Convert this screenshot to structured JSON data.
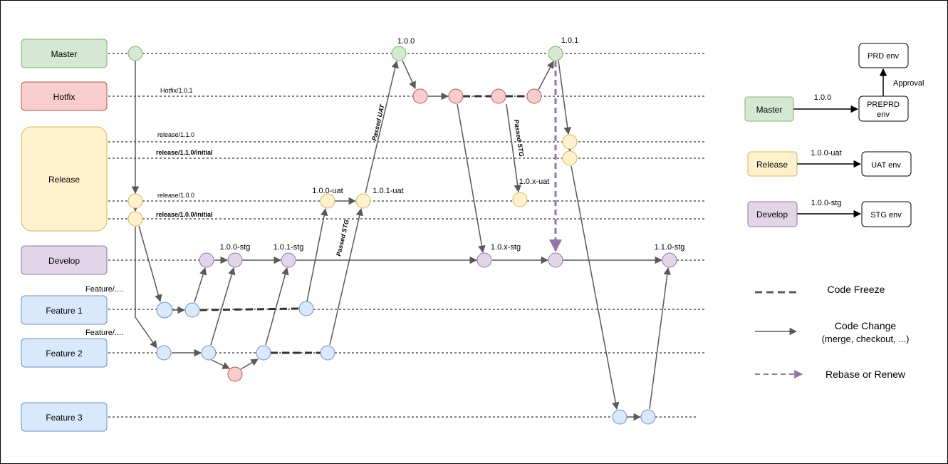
{
  "lanes": {
    "master": "Master",
    "hotfix": "Hotfix",
    "release": "Release",
    "develop": "Develop",
    "feature1": "Feature 1",
    "feature2": "Feature 2",
    "feature3": "Feature 3"
  },
  "line_labels": {
    "hotfix": "Hotfix/1.0.1",
    "release_110": "release/1.1.0",
    "release_110_initial": "release/1.1.0/initial",
    "release_100": "release/1.0.0",
    "release_100_initial": "release/1.0.0/initial",
    "feature1_prefix": "Feature/....",
    "feature2_prefix": "Feature/...."
  },
  "node_labels": {
    "v100": "1.0.0",
    "v101": "1.0.1",
    "v100_uat": "1.0.0-uat",
    "v101_uat": "1.0.1-uat",
    "v10x_uat": "1.0.x-uat",
    "v100_stg": "1.0.0-stg",
    "v101_stg": "1.0.1-stg",
    "v10x_stg": "1.0.x-stg",
    "v110_stg": "1.1.0-stg"
  },
  "edge_labels": {
    "passed_uat": "Passed UAT",
    "passed_stg_release": "Passed STG",
    "passed_stg_hotfix": "Passed STG"
  },
  "envs": {
    "master_label": "Master",
    "master_version": "1.0.0",
    "preprd": [
      "PREPRD",
      "env"
    ],
    "prd": "PRD env",
    "approval": "Approval",
    "release_label": "Release",
    "release_version": "1.0.0-uat",
    "uat": "UAT env",
    "develop_label": "Develop",
    "develop_version": "1.0.0-stg",
    "stg": "STG env"
  },
  "legend": {
    "code_freeze": "Code Freeze",
    "code_change": "Code Change",
    "code_change_sub": "(merge, checkout, ...)",
    "rebase": "Rebase or Renew"
  },
  "colors": {
    "green_fill": "#d5e8d4",
    "green_stroke": "#82b366",
    "red_fill": "#f8cecc",
    "red_stroke": "#b85450",
    "yellow_fill": "#fff2cc",
    "yellow_stroke": "#d6b656",
    "purple_fill": "#e1d5e7",
    "purple_stroke": "#9673a6",
    "blue_fill": "#dae8fc",
    "blue_stroke": "#6c8ebf",
    "edge": "#595959",
    "rebase": "#9673a6"
  }
}
